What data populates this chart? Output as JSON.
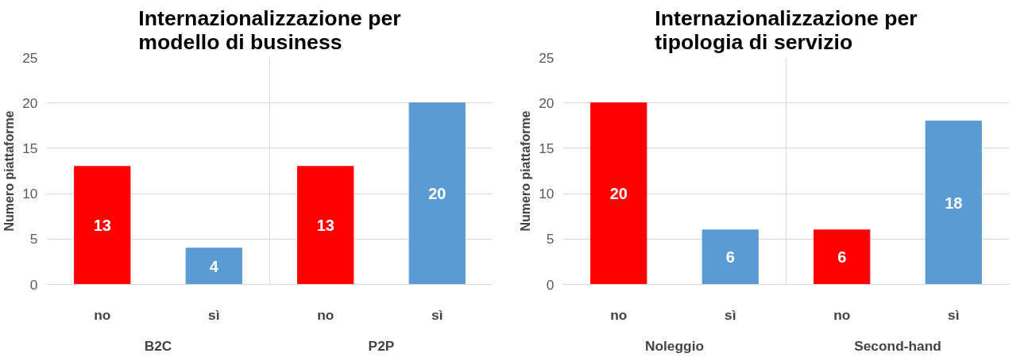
{
  "chart_data": [
    {
      "type": "bar",
      "title": "Internazionalizzazione per modello di business",
      "ylabel": "Numero piattaforme",
      "categories": [
        "no",
        "sì",
        "no",
        "sì"
      ],
      "values": [
        13,
        4,
        13,
        20
      ],
      "colors": [
        "#ff0000",
        "#5b9bd5",
        "#ff0000",
        "#5b9bd5"
      ],
      "ylim": [
        0,
        25
      ],
      "yticks": [
        0,
        5,
        10,
        15,
        20,
        25
      ],
      "grid": "y",
      "data_labels": true,
      "annotations": [
        "B2C",
        "P2P"
      ]
    },
    {
      "type": "bar",
      "title": "Internazionalizzazione per tipologia di servizio",
      "ylabel": "Numero piattaforme",
      "categories": [
        "no",
        "sì",
        "no",
        "sì"
      ],
      "values": [
        20,
        6,
        6,
        18
      ],
      "colors": [
        "#ff0000",
        "#5b9bd5",
        "#ff0000",
        "#5b9bd5"
      ],
      "ylim": [
        0,
        25
      ],
      "yticks": [
        0,
        5,
        10,
        15,
        20,
        25
      ],
      "grid": "y",
      "data_labels": true,
      "annotations": [
        "Noleggio",
        "Second-hand"
      ]
    }
  ]
}
